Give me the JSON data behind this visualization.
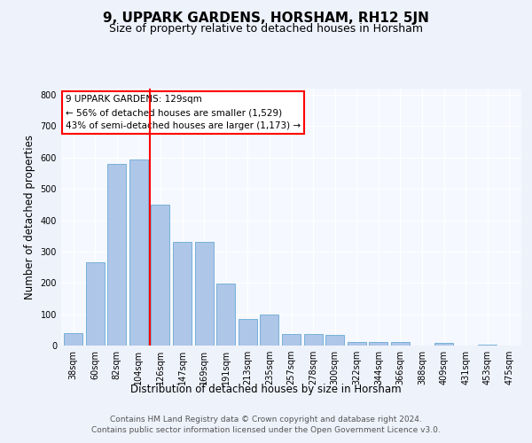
{
  "title": "9, UPPARK GARDENS, HORSHAM, RH12 5JN",
  "subtitle": "Size of property relative to detached houses in Horsham",
  "xlabel": "Distribution of detached houses by size in Horsham",
  "ylabel": "Number of detached properties",
  "categories": [
    "38sqm",
    "60sqm",
    "82sqm",
    "104sqm",
    "126sqm",
    "147sqm",
    "169sqm",
    "191sqm",
    "213sqm",
    "235sqm",
    "257sqm",
    "278sqm",
    "300sqm",
    "322sqm",
    "344sqm",
    "366sqm",
    "388sqm",
    "409sqm",
    "431sqm",
    "453sqm",
    "475sqm"
  ],
  "values": [
    40,
    265,
    580,
    595,
    450,
    330,
    330,
    198,
    85,
    100,
    38,
    38,
    35,
    12,
    12,
    10,
    0,
    8,
    0,
    2,
    0
  ],
  "bar_color": "#aec6e8",
  "bar_edge_color": "#6aaad4",
  "vline_color": "red",
  "vline_index": 3.5,
  "annotation_text": "9 UPPARK GARDENS: 129sqm\n← 56% of detached houses are smaller (1,529)\n43% of semi-detached houses are larger (1,173) →",
  "annotation_box_color": "white",
  "annotation_box_edge_color": "red",
  "ylim": [
    0,
    820
  ],
  "yticks": [
    0,
    100,
    200,
    300,
    400,
    500,
    600,
    700,
    800
  ],
  "footer_line1": "Contains HM Land Registry data © Crown copyright and database right 2024.",
  "footer_line2": "Contains public sector information licensed under the Open Government Licence v3.0.",
  "bg_color": "#eef2fb",
  "plot_bg_color": "#f5f8ff",
  "title_fontsize": 11,
  "subtitle_fontsize": 9,
  "axis_label_fontsize": 8.5,
  "tick_fontsize": 7,
  "annotation_fontsize": 7.5,
  "footer_fontsize": 6.5
}
